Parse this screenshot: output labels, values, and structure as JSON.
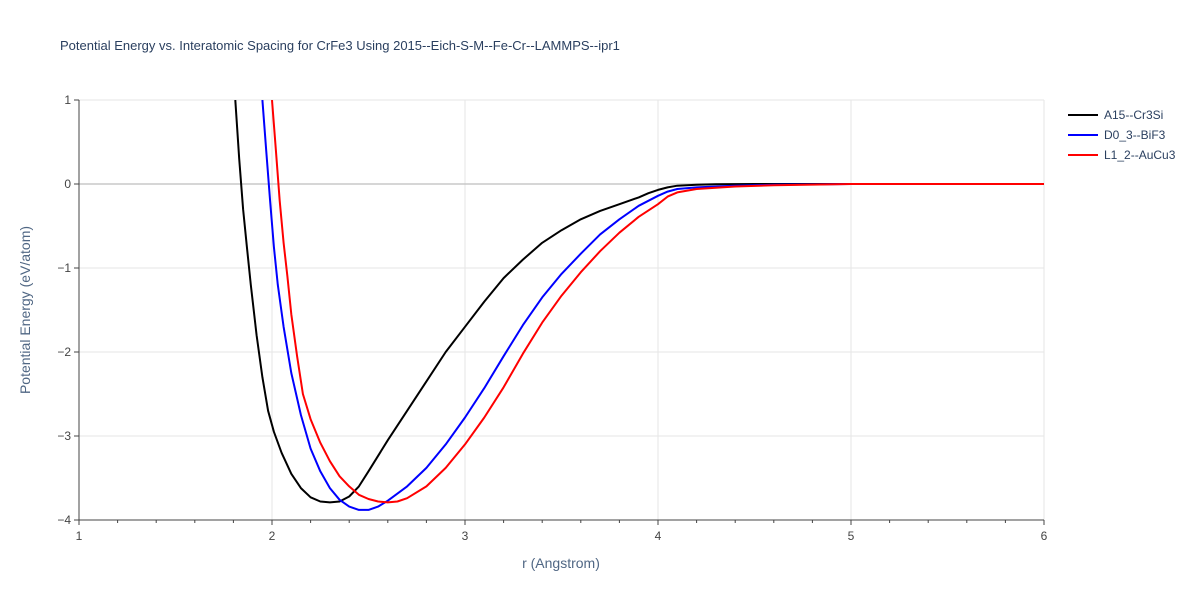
{
  "chart_data": {
    "type": "line",
    "title": "Potential Energy vs. Interatomic Spacing for CrFe3 Using 2015--Eich-S-M--Fe-Cr--LAMMPS--ipr1",
    "xlabel": "r (Angstrom)",
    "ylabel": "Potential Energy (eV/atom)",
    "xlim": [
      1,
      6
    ],
    "ylim": [
      -4,
      1
    ],
    "xticks": [
      "1",
      "2",
      "3",
      "4",
      "5",
      "6"
    ],
    "yticks": [
      "1",
      "0",
      "−1",
      "−2",
      "−3",
      "−4"
    ],
    "grid": true,
    "legend_position": "top-right",
    "series": [
      {
        "name": "A15--Cr3Si",
        "color": "#000000",
        "x": [
          1.81,
          1.83,
          1.85,
          1.87,
          1.89,
          1.92,
          1.95,
          1.98,
          2.01,
          2.05,
          2.1,
          2.15,
          2.2,
          2.25,
          2.3,
          2.35,
          2.4,
          2.45,
          2.5,
          2.6,
          2.7,
          2.8,
          2.9,
          3.0,
          3.1,
          3.2,
          3.3,
          3.4,
          3.5,
          3.6,
          3.7,
          3.8,
          3.9,
          3.95,
          4.0,
          4.05,
          4.1,
          4.2,
          4.3,
          4.5,
          5.0,
          5.5,
          6.0
        ],
        "y": [
          1.0,
          0.3,
          -0.3,
          -0.75,
          -1.2,
          -1.8,
          -2.3,
          -2.7,
          -2.95,
          -3.2,
          -3.45,
          -3.62,
          -3.73,
          -3.78,
          -3.79,
          -3.78,
          -3.72,
          -3.6,
          -3.42,
          -3.05,
          -2.7,
          -2.35,
          -2.0,
          -1.7,
          -1.4,
          -1.12,
          -0.9,
          -0.7,
          -0.55,
          -0.42,
          -0.32,
          -0.24,
          -0.16,
          -0.11,
          -0.07,
          -0.04,
          -0.02,
          -0.01,
          -0.004,
          0.0,
          0.0,
          0.0,
          0.0
        ]
      },
      {
        "name": "D0_3--BiF3",
        "color": "#0000ff",
        "x": [
          1.95,
          1.97,
          1.99,
          2.01,
          2.03,
          2.06,
          2.1,
          2.15,
          2.2,
          2.25,
          2.3,
          2.35,
          2.4,
          2.45,
          2.5,
          2.55,
          2.6,
          2.7,
          2.8,
          2.9,
          3.0,
          3.1,
          3.2,
          3.3,
          3.4,
          3.5,
          3.6,
          3.7,
          3.8,
          3.9,
          4.0,
          4.05,
          4.1,
          4.2,
          4.4,
          4.6,
          5.0,
          6.0
        ],
        "y": [
          1.0,
          0.4,
          -0.2,
          -0.75,
          -1.2,
          -1.7,
          -2.25,
          -2.75,
          -3.15,
          -3.42,
          -3.62,
          -3.76,
          -3.84,
          -3.88,
          -3.88,
          -3.84,
          -3.77,
          -3.6,
          -3.38,
          -3.1,
          -2.78,
          -2.43,
          -2.05,
          -1.68,
          -1.35,
          -1.07,
          -0.83,
          -0.6,
          -0.42,
          -0.26,
          -0.14,
          -0.09,
          -0.06,
          -0.04,
          -0.02,
          -0.01,
          0.0,
          0.0
        ]
      },
      {
        "name": "L1_2--AuCu3",
        "color": "#ff0000",
        "x": [
          2.0,
          2.02,
          2.04,
          2.06,
          2.08,
          2.1,
          2.13,
          2.16,
          2.2,
          2.25,
          2.3,
          2.35,
          2.4,
          2.45,
          2.5,
          2.55,
          2.6,
          2.65,
          2.7,
          2.8,
          2.9,
          3.0,
          3.1,
          3.2,
          3.3,
          3.4,
          3.5,
          3.6,
          3.7,
          3.8,
          3.9,
          4.0,
          4.05,
          4.1,
          4.2,
          4.4,
          4.6,
          5.0,
          6.0
        ],
        "y": [
          1.0,
          0.4,
          -0.2,
          -0.7,
          -1.1,
          -1.55,
          -2.05,
          -2.5,
          -2.8,
          -3.08,
          -3.3,
          -3.48,
          -3.6,
          -3.7,
          -3.75,
          -3.78,
          -3.79,
          -3.78,
          -3.74,
          -3.6,
          -3.38,
          -3.1,
          -2.78,
          -2.42,
          -2.02,
          -1.65,
          -1.33,
          -1.05,
          -0.8,
          -0.58,
          -0.39,
          -0.24,
          -0.15,
          -0.1,
          -0.06,
          -0.03,
          -0.015,
          0.0,
          0.0
        ]
      }
    ]
  }
}
